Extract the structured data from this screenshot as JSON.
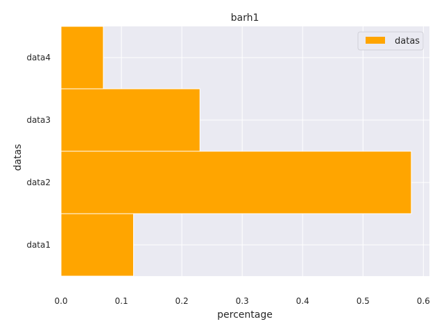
{
  "chart_data": {
    "type": "bar",
    "orientation": "horizontal",
    "title": "barh1",
    "xlabel": "percentage",
    "ylabel": "datas",
    "categories": [
      "data1",
      "data2",
      "data3",
      "data4"
    ],
    "series": [
      {
        "name": "datas",
        "values": [
          0.12,
          0.58,
          0.23,
          0.07
        ]
      }
    ],
    "xlim": [
      0.0,
      0.61
    ],
    "xticks": [
      0.0,
      0.1,
      0.2,
      0.3,
      0.4,
      0.5,
      0.6
    ],
    "xtick_labels": [
      "0.0",
      "0.1",
      "0.2",
      "0.3",
      "0.4",
      "0.5",
      "0.6"
    ],
    "grid": true,
    "legend": "top-right",
    "colors": {
      "bar": "#FFA500",
      "plot_bg": "#EAEAF2",
      "grid": "#FFFFFF"
    }
  }
}
